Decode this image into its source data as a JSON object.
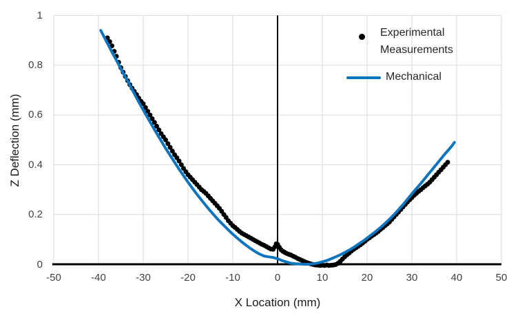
{
  "chart_data": {
    "type": "scatter",
    "title": "",
    "xlabel": "X Location (mm)",
    "ylabel": "Z Deflection (mm)",
    "xlim": [
      -50,
      50
    ],
    "ylim": [
      0,
      1
    ],
    "x_ticks": [
      "-50",
      "-40",
      "-30",
      "-20",
      "-10",
      "0",
      "10",
      "20",
      "30",
      "40",
      "50"
    ],
    "y_ticks": [
      "0",
      "0.2",
      "0.4",
      "0.6",
      "0.8",
      "1"
    ],
    "grid": true,
    "gridline_color": "#d9d9d9",
    "axis_color": "#000000",
    "vertical_reference_line_x": 0,
    "legend": {
      "position": "top-right-inside",
      "entries": [
        {
          "label": "Experimental Measurements",
          "marker": "dot",
          "color": "#000000"
        },
        {
          "label": "Mechanical",
          "marker": "line",
          "color": "#0d74be"
        }
      ]
    },
    "series": [
      {
        "name": "Experimental Measurements",
        "type": "scatter",
        "color": "#000000",
        "marker_size": 7,
        "points": [
          [
            -38,
            0.91
          ],
          [
            -37.5,
            0.895
          ],
          [
            -37,
            0.878
          ],
          [
            -36.5,
            0.856
          ],
          [
            -36,
            0.836
          ],
          [
            -35.5,
            0.812
          ],
          [
            -35,
            0.79
          ],
          [
            -34.5,
            0.772
          ],
          [
            -34,
            0.755
          ],
          [
            -33.5,
            0.738
          ],
          [
            -33,
            0.722
          ],
          [
            -32.5,
            0.708
          ],
          [
            -32,
            0.695
          ],
          [
            -31.5,
            0.682
          ],
          [
            -31,
            0.668
          ],
          [
            -30.5,
            0.655
          ],
          [
            -30,
            0.645
          ],
          [
            -29.5,
            0.63
          ],
          [
            -29,
            0.615
          ],
          [
            -28.5,
            0.6
          ],
          [
            -28,
            0.585
          ],
          [
            -27.5,
            0.57
          ],
          [
            -27,
            0.555
          ],
          [
            -26.5,
            0.54
          ],
          [
            -26,
            0.525
          ],
          [
            -25.5,
            0.512
          ],
          [
            -25,
            0.5
          ],
          [
            -24.5,
            0.485
          ],
          [
            -24,
            0.47
          ],
          [
            -23.5,
            0.455
          ],
          [
            -23,
            0.44
          ],
          [
            -22.5,
            0.428
          ],
          [
            -22,
            0.415
          ],
          [
            -21.5,
            0.4
          ],
          [
            -21,
            0.385
          ],
          [
            -20.5,
            0.372
          ],
          [
            -20,
            0.36
          ],
          [
            -19.5,
            0.35
          ],
          [
            -19,
            0.34
          ],
          [
            -18.5,
            0.33
          ],
          [
            -18,
            0.32
          ],
          [
            -17.5,
            0.31
          ],
          [
            -17,
            0.3
          ],
          [
            -16.5,
            0.293
          ],
          [
            -16,
            0.285
          ],
          [
            -15.5,
            0.275
          ],
          [
            -15,
            0.265
          ],
          [
            -14.5,
            0.255
          ],
          [
            -14,
            0.245
          ],
          [
            -13.5,
            0.235
          ],
          [
            -13,
            0.225
          ],
          [
            -12.5,
            0.213
          ],
          [
            -12,
            0.2
          ],
          [
            -11.5,
            0.188
          ],
          [
            -11,
            0.175
          ],
          [
            -10.5,
            0.165
          ],
          [
            -10,
            0.155
          ],
          [
            -9.5,
            0.148
          ],
          [
            -9,
            0.14
          ],
          [
            -8.5,
            0.132
          ],
          [
            -8,
            0.125
          ],
          [
            -7.5,
            0.12
          ],
          [
            -7,
            0.115
          ],
          [
            -6.5,
            0.11
          ],
          [
            -6,
            0.105
          ],
          [
            -5.5,
            0.1
          ],
          [
            -5,
            0.095
          ],
          [
            -4.5,
            0.09
          ],
          [
            -4,
            0.085
          ],
          [
            -3.5,
            0.08
          ],
          [
            -3,
            0.076
          ],
          [
            -2.5,
            0.071
          ],
          [
            -2,
            0.066
          ],
          [
            -1.5,
            0.061
          ],
          [
            -1,
            0.06
          ],
          [
            -0.6,
            0.07
          ],
          [
            -0.3,
            0.082
          ],
          [
            0,
            0.08
          ],
          [
            0.4,
            0.068
          ],
          [
            0.8,
            0.058
          ],
          [
            1.2,
            0.052
          ],
          [
            1.6,
            0.048
          ],
          [
            2,
            0.044
          ],
          [
            2.5,
            0.04
          ],
          [
            3,
            0.037
          ],
          [
            3.5,
            0.032
          ],
          [
            4,
            0.028
          ],
          [
            4.5,
            0.023
          ],
          [
            5,
            0.019
          ],
          [
            5.5,
            0.015
          ],
          [
            6,
            0.011
          ],
          [
            6.5,
            0.007
          ],
          [
            7,
            0.004
          ],
          [
            7.5,
            0.001
          ],
          [
            8,
            -0.001
          ],
          [
            8.5,
            -0.003
          ],
          [
            9,
            -0.004
          ],
          [
            9.5,
            -0.005
          ],
          [
            10,
            -0.004
          ],
          [
            10.5,
            -0.005
          ],
          [
            11,
            -0.003
          ],
          [
            11.5,
            -0.005
          ],
          [
            12,
            -0.004
          ],
          [
            12.5,
            -0.003
          ],
          [
            13,
            -0.001
          ],
          [
            13.5,
            0.004
          ],
          [
            14,
            0.012
          ],
          [
            14.5,
            0.021
          ],
          [
            15,
            0.03
          ],
          [
            15.5,
            0.038
          ],
          [
            16,
            0.045
          ],
          [
            16.5,
            0.053
          ],
          [
            17,
            0.06
          ],
          [
            17.5,
            0.066
          ],
          [
            18,
            0.072
          ],
          [
            18.5,
            0.078
          ],
          [
            19,
            0.085
          ],
          [
            19.5,
            0.092
          ],
          [
            20,
            0.1
          ],
          [
            20.5,
            0.106
          ],
          [
            21,
            0.113
          ],
          [
            21.5,
            0.119
          ],
          [
            22,
            0.125
          ],
          [
            22.5,
            0.132
          ],
          [
            23,
            0.14
          ],
          [
            23.5,
            0.147
          ],
          [
            24,
            0.155
          ],
          [
            24.5,
            0.162
          ],
          [
            25,
            0.17
          ],
          [
            25.5,
            0.18
          ],
          [
            26,
            0.19
          ],
          [
            26.5,
            0.2
          ],
          [
            27,
            0.21
          ],
          [
            27.5,
            0.22
          ],
          [
            28,
            0.23
          ],
          [
            28.5,
            0.24
          ],
          [
            29,
            0.25
          ],
          [
            29.5,
            0.259
          ],
          [
            30,
            0.268
          ],
          [
            30.5,
            0.277
          ],
          [
            31,
            0.285
          ],
          [
            31.5,
            0.293
          ],
          [
            32,
            0.3
          ],
          [
            32.5,
            0.308
          ],
          [
            33,
            0.315
          ],
          [
            33.5,
            0.322
          ],
          [
            34,
            0.33
          ],
          [
            34.5,
            0.34
          ],
          [
            35,
            0.35
          ],
          [
            35.5,
            0.36
          ],
          [
            36,
            0.37
          ],
          [
            36.5,
            0.38
          ],
          [
            37,
            0.39
          ],
          [
            37.5,
            0.4
          ],
          [
            38,
            0.41
          ]
        ]
      },
      {
        "name": "Mechanical",
        "type": "line",
        "color": "#0d74be",
        "line_width": 4,
        "points": [
          [
            -39.5,
            0.94
          ],
          [
            -38,
            0.888
          ],
          [
            -37,
            0.853
          ],
          [
            -36,
            0.82
          ],
          [
            -35,
            0.786
          ],
          [
            -34,
            0.753
          ],
          [
            -33,
            0.72
          ],
          [
            -32,
            0.686
          ],
          [
            -31,
            0.652
          ],
          [
            -30,
            0.62
          ],
          [
            -29,
            0.588
          ],
          [
            -28,
            0.557
          ],
          [
            -27,
            0.526
          ],
          [
            -26,
            0.496
          ],
          [
            -25,
            0.466
          ],
          [
            -24,
            0.438
          ],
          [
            -23,
            0.41
          ],
          [
            -22,
            0.382
          ],
          [
            -21,
            0.356
          ],
          [
            -20,
            0.33
          ],
          [
            -19,
            0.305
          ],
          [
            -18,
            0.281
          ],
          [
            -17,
            0.258
          ],
          [
            -16,
            0.236
          ],
          [
            -15,
            0.214
          ],
          [
            -14,
            0.194
          ],
          [
            -13,
            0.174
          ],
          [
            -12,
            0.156
          ],
          [
            -11,
            0.138
          ],
          [
            -10,
            0.121
          ],
          [
            -9,
            0.105
          ],
          [
            -8,
            0.09
          ],
          [
            -7,
            0.076
          ],
          [
            -6,
            0.063
          ],
          [
            -5,
            0.051
          ],
          [
            -4,
            0.041
          ],
          [
            -3,
            0.033
          ],
          [
            -2,
            0.03
          ],
          [
            -1,
            0.027
          ],
          [
            0,
            0.022
          ],
          [
            1,
            0.015
          ],
          [
            2,
            0.009
          ],
          [
            3,
            0.004
          ],
          [
            4,
            0.002
          ],
          [
            5,
            0.001
          ],
          [
            6,
            0.0
          ],
          [
            7,
            0.0
          ],
          [
            8,
            0.002
          ],
          [
            9,
            0.005
          ],
          [
            10,
            0.01
          ],
          [
            11,
            0.015
          ],
          [
            12,
            0.022
          ],
          [
            13,
            0.03
          ],
          [
            14,
            0.038
          ],
          [
            15,
            0.047
          ],
          [
            16,
            0.057
          ],
          [
            17,
            0.068
          ],
          [
            18,
            0.08
          ],
          [
            19,
            0.092
          ],
          [
            20,
            0.105
          ],
          [
            21,
            0.119
          ],
          [
            22,
            0.133
          ],
          [
            23,
            0.148
          ],
          [
            24,
            0.164
          ],
          [
            25,
            0.181
          ],
          [
            26,
            0.199
          ],
          [
            27,
            0.219
          ],
          [
            28,
            0.239
          ],
          [
            29,
            0.261
          ],
          [
            30,
            0.283
          ],
          [
            31,
            0.304
          ],
          [
            32,
            0.325
          ],
          [
            33,
            0.347
          ],
          [
            34,
            0.369
          ],
          [
            35,
            0.391
          ],
          [
            36,
            0.413
          ],
          [
            37,
            0.435
          ],
          [
            38,
            0.456
          ],
          [
            39,
            0.477
          ],
          [
            39.5,
            0.49
          ]
        ]
      }
    ]
  }
}
